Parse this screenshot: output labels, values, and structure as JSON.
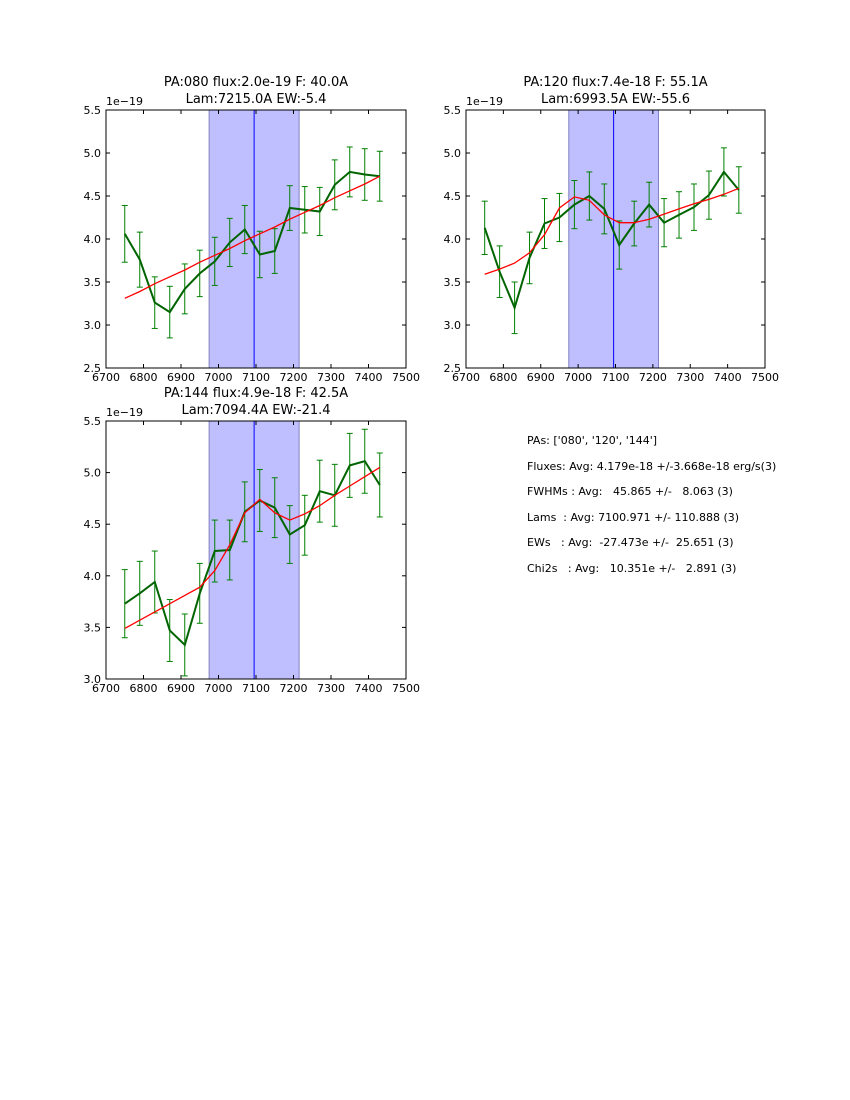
{
  "chart_data": [
    {
      "type": "line",
      "title_line1": "PA:080 flux:2.0e-19 F: 40.0A",
      "title_line2": "Lam:7215.0A EW:-5.4",
      "offset_label": "1e−19",
      "xlim": [
        6700,
        7500
      ],
      "ylim": [
        2.5,
        5.5
      ],
      "xticks": [
        6700,
        6800,
        6900,
        7000,
        7100,
        7200,
        7300,
        7400,
        7500
      ],
      "yticks": [
        2.5,
        3.0,
        3.5,
        4.0,
        4.5,
        5.0,
        5.5
      ],
      "shaded_region": [
        6975,
        7215
      ],
      "vline": 7095,
      "x": [
        6750,
        6790,
        6830,
        6870,
        6910,
        6950,
        6990,
        7030,
        7070,
        7110,
        7150,
        7190,
        7230,
        7270,
        7310,
        7350,
        7390,
        7430
      ],
      "series": [
        {
          "name": "data",
          "color": "#006400",
          "values": [
            4.06,
            3.76,
            3.26,
            3.15,
            3.42,
            3.6,
            3.74,
            3.96,
            4.11,
            3.82,
            3.86,
            4.36,
            4.34,
            4.32,
            4.63,
            4.78,
            4.75,
            4.73
          ],
          "errors": [
            0.33,
            0.32,
            0.3,
            0.3,
            0.29,
            0.27,
            0.28,
            0.28,
            0.28,
            0.27,
            0.26,
            0.26,
            0.27,
            0.28,
            0.29,
            0.29,
            0.3,
            0.29
          ]
        },
        {
          "name": "fit",
          "color": "#ff0000",
          "values": [
            3.31,
            3.39,
            3.48,
            3.56,
            3.64,
            3.73,
            3.81,
            3.89,
            3.98,
            4.06,
            4.14,
            4.23,
            4.31,
            4.39,
            4.48,
            4.56,
            4.64,
            4.73
          ]
        }
      ]
    },
    {
      "type": "line",
      "title_line1": "PA:120 flux:7.4e-18 F: 55.1A",
      "title_line2": "Lam:6993.5A EW:-55.6",
      "offset_label": "1e−19",
      "xlim": [
        6700,
        7500
      ],
      "ylim": [
        2.5,
        5.5
      ],
      "xticks": [
        6700,
        6800,
        6900,
        7000,
        7100,
        7200,
        7300,
        7400,
        7500
      ],
      "yticks": [
        2.5,
        3.0,
        3.5,
        4.0,
        4.5,
        5.0,
        5.5
      ],
      "shaded_region": [
        6975,
        7215
      ],
      "vline": 7095,
      "x": [
        6750,
        6790,
        6830,
        6870,
        6910,
        6950,
        6990,
        7030,
        7070,
        7110,
        7150,
        7190,
        7230,
        7270,
        7310,
        7350,
        7390,
        7430
      ],
      "series": [
        {
          "name": "data",
          "color": "#006400",
          "values": [
            4.13,
            3.62,
            3.2,
            3.78,
            4.18,
            4.25,
            4.4,
            4.5,
            4.35,
            3.93,
            4.18,
            4.4,
            4.19,
            4.28,
            4.37,
            4.51,
            4.78,
            4.57
          ],
          "errors": [
            0.31,
            0.3,
            0.3,
            0.3,
            0.29,
            0.28,
            0.28,
            0.28,
            0.29,
            0.28,
            0.26,
            0.26,
            0.28,
            0.27,
            0.27,
            0.28,
            0.28,
            0.27
          ]
        },
        {
          "name": "fit",
          "color": "#ff0000",
          "values": [
            3.59,
            3.65,
            3.72,
            3.84,
            4.05,
            4.36,
            4.49,
            4.45,
            4.28,
            4.19,
            4.19,
            4.23,
            4.29,
            4.35,
            4.41,
            4.46,
            4.52,
            4.59
          ]
        }
      ]
    },
    {
      "type": "line",
      "title_line1": "PA:144 flux:4.9e-18 F: 42.5A",
      "title_line2": "Lam:7094.4A EW:-21.4",
      "offset_label": "1e−19",
      "xlim": [
        6700,
        7500
      ],
      "ylim": [
        3.0,
        5.5
      ],
      "xticks": [
        6700,
        6800,
        6900,
        7000,
        7100,
        7200,
        7300,
        7400,
        7500
      ],
      "yticks": [
        3.0,
        3.5,
        4.0,
        4.5,
        5.0,
        5.5
      ],
      "shaded_region": [
        6975,
        7215
      ],
      "vline": 7095,
      "x": [
        6750,
        6790,
        6830,
        6870,
        6910,
        6950,
        6990,
        7030,
        7070,
        7110,
        7150,
        7190,
        7230,
        7270,
        7310,
        7350,
        7390,
        7430
      ],
      "series": [
        {
          "name": "data",
          "color": "#006400",
          "values": [
            3.73,
            3.83,
            3.94,
            3.47,
            3.33,
            3.83,
            4.24,
            4.25,
            4.62,
            4.73,
            4.66,
            4.4,
            4.49,
            4.82,
            4.78,
            5.07,
            5.11,
            4.88
          ],
          "errors": [
            0.33,
            0.31,
            0.3,
            0.3,
            0.3,
            0.29,
            0.3,
            0.29,
            0.29,
            0.3,
            0.29,
            0.28,
            0.29,
            0.3,
            0.3,
            0.31,
            0.31,
            0.31
          ]
        },
        {
          "name": "fit",
          "color": "#ff0000",
          "values": [
            3.49,
            3.57,
            3.65,
            3.73,
            3.81,
            3.89,
            4.05,
            4.3,
            4.61,
            4.74,
            4.61,
            4.54,
            4.6,
            4.68,
            4.78,
            4.87,
            4.96,
            5.05
          ]
        }
      ]
    }
  ],
  "colors": {
    "errorbar": "#008000",
    "shade": "#bfbfff",
    "shade_edge": "#8080c0",
    "vline": "#0000ff"
  },
  "stats": {
    "pas": "PAs: ['080', '120', '144']",
    "fluxes": "Fluxes: Avg: 4.179e-18 +/-3.668e-18 erg/s(3)",
    "fwhms": "FWHMs : Avg:   45.865 +/-   8.063 (3)",
    "lams": "Lams  : Avg: 7100.971 +/- 110.888 (3)",
    "ews": "EWs   : Avg:  -27.473e +/-  25.651 (3)",
    "chi2s": "Chi2s   : Avg:   10.351e +/-   2.891 (3)"
  }
}
